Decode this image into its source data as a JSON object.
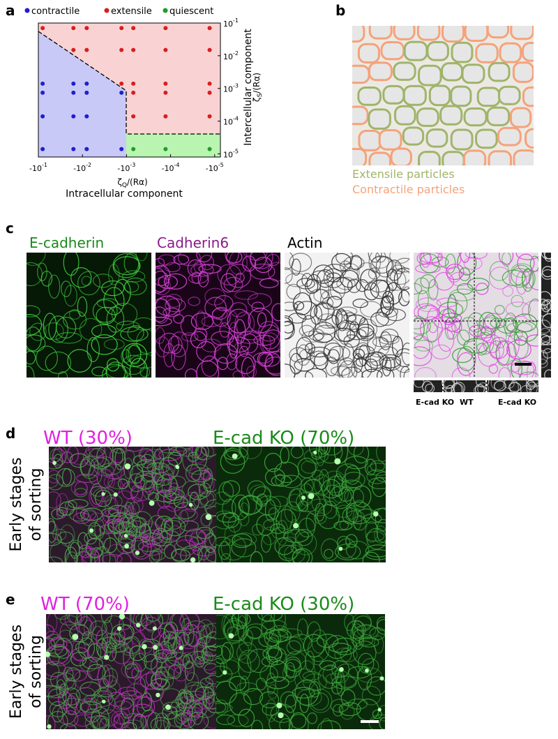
{
  "panel_a": {
    "letter": "a",
    "type": "scatter",
    "legend": [
      "contractile",
      "extensile",
      "quiescent"
    ],
    "series": [
      {
        "name": "contractile",
        "color": "#1f1fd0",
        "x": [
          -0.08,
          -0.016,
          -0.008,
          -0.08,
          -0.016,
          -0.008,
          -0.0013,
          -0.08,
          -0.016,
          -0.008,
          -0.08,
          -0.016,
          -0.008,
          -0.0013
        ],
        "y": [
          0.0014,
          0.0014,
          0.0014,
          0.00074,
          0.00074,
          0.00074,
          0.00074,
          0.00014,
          0.00014,
          0.00014,
          1.4e-05,
          1.4e-05,
          1.4e-05,
          1.4e-05
        ]
      },
      {
        "name": "extensile",
        "color": "#d81e1e",
        "x": [
          -0.08,
          -0.016,
          -0.008,
          -0.0013,
          -0.0007,
          -0.00013,
          -1.3e-05,
          -0.016,
          -0.008,
          -0.0013,
          -0.0007,
          -0.00013,
          -1.3e-05,
          -0.0013,
          -0.0007,
          -0.00013,
          -1.3e-05,
          -0.0007,
          -0.00013,
          -1.3e-05,
          -0.0007,
          -0.00013,
          -1.3e-05
        ],
        "y": [
          0.07,
          0.07,
          0.07,
          0.07,
          0.07,
          0.07,
          0.07,
          0.015,
          0.015,
          0.015,
          0.015,
          0.015,
          0.015,
          0.0014,
          0.0014,
          0.0014,
          0.0014,
          0.00074,
          0.00074,
          0.00074,
          0.00014,
          0.00014,
          0.00014
        ]
      },
      {
        "name": "quiescent",
        "color": "#1e9e2a",
        "x": [
          -0.0007,
          -0.00013,
          -1.3e-05
        ],
        "y": [
          1.4e-05,
          1.4e-05,
          1.4e-05
        ]
      }
    ],
    "xscale": "log",
    "yscale": "log",
    "xlim": [
      -0.1,
      -7.4e-06
    ],
    "ylim": [
      8e-06,
      0.1
    ],
    "xticks": [
      {
        "value": -0.1,
        "label": "-10",
        "exponent": "-1"
      },
      {
        "value": -0.01,
        "label": "-10",
        "exponent": "-2"
      },
      {
        "value": -0.001,
        "label": "-10",
        "exponent": "-3"
      },
      {
        "value": -0.0001,
        "label": "-10",
        "exponent": "-4"
      },
      {
        "value": -1e-05,
        "label": "-10",
        "exponent": "-5"
      }
    ],
    "yticks": [
      {
        "value": 0.1,
        "label": "10",
        "exponent": "-1"
      },
      {
        "value": 0.01,
        "label": "10",
        "exponent": "-2"
      },
      {
        "value": 0.001,
        "label": "10",
        "exponent": "-3"
      },
      {
        "value": 0.0001,
        "label": "10",
        "exponent": "-4"
      },
      {
        "value": 1e-05,
        "label": "10",
        "exponent": "-5"
      }
    ],
    "xlabel": {
      "symbol": "ζ",
      "sub": "Q",
      "rest": "/(Rα)"
    },
    "xtitle": "Intracellular component",
    "ylabel": {
      "symbol": "ζ",
      "sub": "S",
      "rest": "/(Rα)"
    },
    "ytitle": "Intercellular component"
  },
  "panel_b": {
    "letter": "b",
    "labels": [
      "Extensile particles",
      "Contractile particles"
    ]
  },
  "panel_c": {
    "letter": "c",
    "titles": [
      "E-cadherin",
      "Cadherin6",
      "Actin"
    ],
    "strip_labels": [
      "E-cad KO",
      "WT",
      "E-cad KO"
    ]
  },
  "panel_d": {
    "letter": "d",
    "titles": [
      "WT (30%)",
      "E-cad KO (70%)"
    ],
    "side": [
      "Early stages",
      "of sorting"
    ]
  },
  "panel_e": {
    "letter": "e",
    "titles": [
      "WT (70%)",
      "E-cad KO (30%)"
    ],
    "side": [
      "Early stages",
      "of sorting"
    ]
  }
}
